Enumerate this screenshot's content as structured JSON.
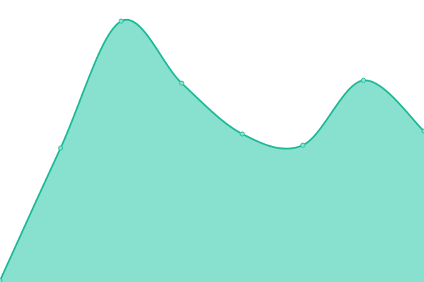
{
  "chart_data": {
    "type": "area",
    "categories": [
      null,
      null,
      null,
      null,
      null,
      null,
      null,
      null
    ],
    "values": [
      0,
      47,
      92,
      70,
      52,
      48,
      71,
      53
    ],
    "ylim": [
      0,
      100
    ],
    "color": "#1fba98",
    "fill_color": "#88e0cf",
    "marker_color": "#88e0cf"
  }
}
